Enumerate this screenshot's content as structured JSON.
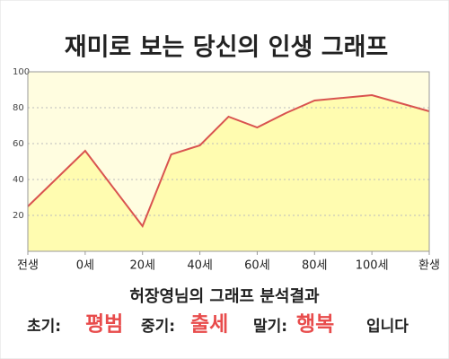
{
  "chart_data": {
    "type": "area",
    "title": "재미로 보는 당신의 인생 그래프",
    "x": [
      0,
      2,
      4,
      5,
      6,
      7,
      8,
      9,
      10,
      12,
      14
    ],
    "values": [
      25,
      56,
      14,
      54,
      59,
      75,
      69,
      77,
      84,
      87,
      78
    ],
    "color": "#d9534f",
    "fill": "#fffcb0",
    "background": "#fffde0",
    "xlim": [
      0,
      14
    ],
    "xticks": [
      {
        "value": 0,
        "label": "전생"
      },
      {
        "value": 2,
        "label": "0세"
      },
      {
        "value": 4,
        "label": "20세"
      },
      {
        "value": 6,
        "label": "40세"
      },
      {
        "value": 8,
        "label": "60세"
      },
      {
        "value": 10,
        "label": "80세"
      },
      {
        "value": 12,
        "label": "100세"
      },
      {
        "value": 14,
        "label": "환생"
      }
    ],
    "ylim": [
      0,
      100
    ],
    "yticks": [
      20,
      40,
      60,
      80,
      100
    ],
    "grid": true
  },
  "result": {
    "heading": "허장영님의 그래프 분석결과",
    "items": [
      {
        "label": "초기:",
        "value": "평범"
      },
      {
        "label": "중기:",
        "value": "출세"
      },
      {
        "label": "말기:",
        "value": "행복"
      }
    ],
    "ending": "입니다"
  }
}
